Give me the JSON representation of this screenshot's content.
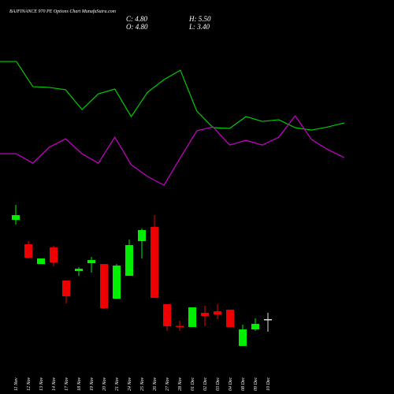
{
  "chart_data": [
    {
      "type": "candlestick",
      "title": "BAJFINANCE 970 PE Options Chart MunafaSutra.com",
      "summary": [
        "C: 4.80",
        "H: 5.50",
        "O: 4.80",
        "L: 3.40"
      ],
      "categories": [
        "11 Nov",
        "12 Nov",
        "13 Nov",
        "14 Nov",
        "17 Nov",
        "18 Nov",
        "19 Nov",
        "20 Nov",
        "21 Nov",
        "24 Nov",
        "25 Nov",
        "26 Nov",
        "27 Nov",
        "28 Nov",
        "01 Dec",
        "02 Dec",
        "03 Dec",
        "04 Dec",
        "08 Dec",
        "09 Dec",
        "10 Dec"
      ],
      "open": [
        15.82,
        13.11,
        10.92,
        12.76,
        9.09,
        10.14,
        11.01,
        10.92,
        7.07,
        9.61,
        13.46,
        15.04,
        6.46,
        4.05,
        3.93,
        5.5,
        5.67,
        5.85,
        1.83,
        3.66,
        4.8
      ],
      "high": [
        17.49,
        13.46,
        11.54,
        12.94,
        9.09,
        10.57,
        11.71,
        10.92,
        10.92,
        13.64,
        14.86,
        16.35,
        6.46,
        4.62,
        6.11,
        6.29,
        6.46,
        5.85,
        4.19,
        4.89,
        5.5
      ],
      "low": [
        15.3,
        11.54,
        10.92,
        10.66,
        6.55,
        9.61,
        9.96,
        5.94,
        7.07,
        9.61,
        11.54,
        7.16,
        3.49,
        3.49,
        3.93,
        4.01,
        4.8,
        3.93,
        1.83,
        3.49,
        3.4
      ],
      "close": [
        16.35,
        11.62,
        11.54,
        11.1,
        7.34,
        10.4,
        11.36,
        6.02,
        10.75,
        13.02,
        14.69,
        7.16,
        4.01,
        4.01,
        6.11,
        5.15,
        5.32,
        3.93,
        3.66,
        4.28,
        4.8
      ],
      "up_color": "#00ee00",
      "down_color": "#ee0000",
      "flat_color": "#dddddd",
      "ylim": [
        1.74,
        18.36
      ]
    },
    {
      "type": "line",
      "x": [
        0,
        1,
        2,
        3,
        4,
        5,
        6,
        7,
        8,
        9,
        10,
        11,
        12,
        13,
        14,
        15,
        16,
        17,
        18,
        19,
        20,
        21
      ],
      "xlim": [
        0,
        21
      ],
      "ylim": [
        0,
        100
      ],
      "series": [
        {
          "color": "#00cc00",
          "values": [
            90.5,
            90.5,
            73.7,
            73.2,
            71.6,
            58.4,
            68.9,
            72.1,
            53.7,
            70,
            78.4,
            84.7,
            57.4,
            46.3,
            45.8,
            53.7,
            50.5,
            51.6,
            46.3,
            44.7,
            46.8,
            49.5
          ]
        },
        {
          "color": "#cc00cc",
          "values": [
            28.9,
            28.9,
            22.6,
            33.2,
            38.9,
            28.9,
            22.6,
            40,
            21.6,
            13.7,
            7.9,
            26.3,
            44.2,
            46.8,
            34.7,
            37.9,
            34.7,
            40,
            54.2,
            38.4,
            31.6,
            26.3
          ]
        }
      ]
    }
  ]
}
